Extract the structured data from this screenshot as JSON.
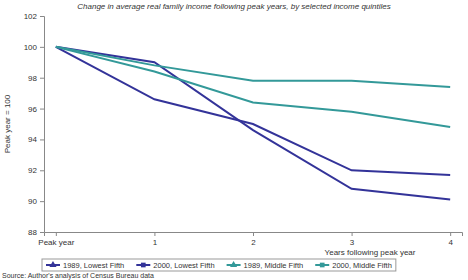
{
  "chart_data": {
    "type": "line",
    "title": "Change in average real family income following peak years, by selected income quintiles",
    "x_label": "Years following peak year",
    "y_label": "Peak year = 100",
    "source": "Source: Author's analysis of Census Bureau data",
    "categories": [
      "Peak year",
      "1",
      "2",
      "3",
      "4"
    ],
    "series": [
      {
        "name": "1989, Lowest Fifth",
        "color": "#333399",
        "marker": "triangle",
        "values": [
          100,
          99.0,
          94.6,
          90.8,
          90.1
        ]
      },
      {
        "name": "2000, Lowest Fifth",
        "color": "#333399",
        "marker": "square",
        "values": [
          100,
          96.6,
          95.0,
          92.0,
          91.7
        ]
      },
      {
        "name": "1989, Middle Fifth",
        "color": "#339999",
        "marker": "triangle",
        "values": [
          100,
          98.4,
          96.4,
          95.8,
          94.8
        ]
      },
      {
        "name": "2000, Middle Fifth",
        "color": "#339999",
        "marker": "square",
        "values": [
          100,
          98.8,
          97.8,
          97.8,
          97.4
        ]
      }
    ],
    "ylim": [
      88,
      102
    ],
    "yticks": [
      88,
      90,
      92,
      94,
      96,
      98,
      100,
      102
    ],
    "grid": false,
    "legend": "bottom"
  }
}
